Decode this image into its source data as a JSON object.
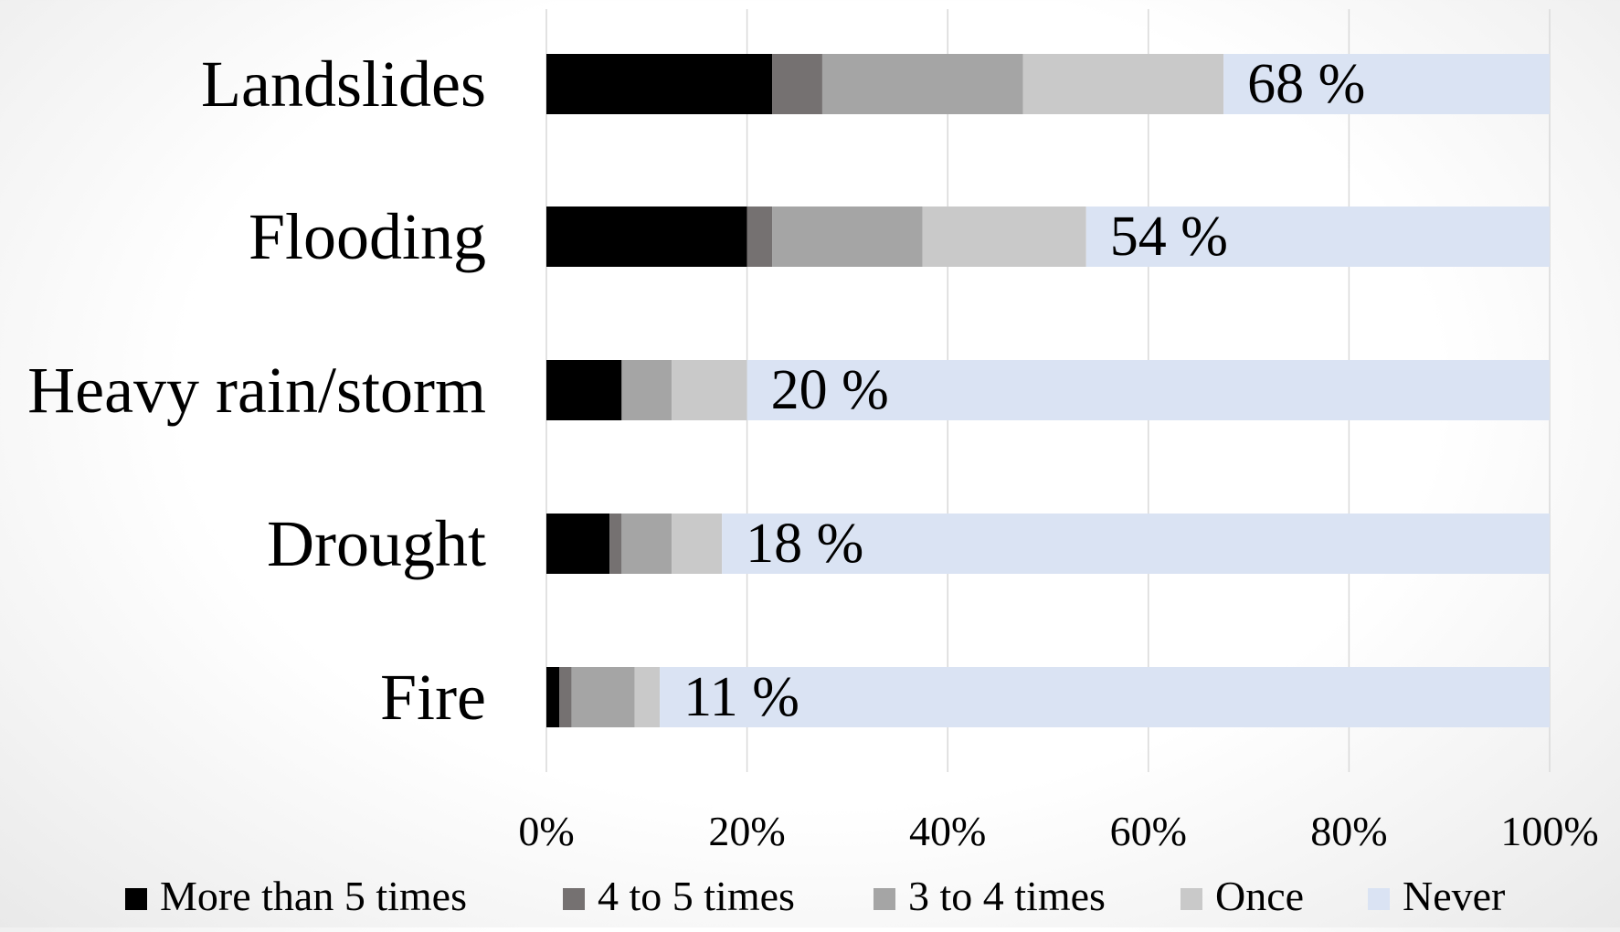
{
  "chart_data": {
    "type": "bar",
    "orientation": "horizontal",
    "stacked": true,
    "percent_stacked": true,
    "categories": [
      "Landslides",
      "Flooding",
      "Heavy rain/storm",
      "Drought",
      "Fire"
    ],
    "series": [
      {
        "name": "More than 5 times",
        "color": "#000000",
        "values": [
          22.5,
          20,
          7.5,
          6.3,
          1.3
        ]
      },
      {
        "name": "4 to 5 times",
        "color": "#757171",
        "values": [
          5,
          2.5,
          0,
          1.2,
          1.2
        ]
      },
      {
        "name": "3 to 4 times",
        "color": "#a5a5a5",
        "values": [
          20,
          15,
          5,
          5,
          6.3
        ]
      },
      {
        "name": "Once",
        "color": "#c9c9c9",
        "values": [
          20,
          16.3,
          7.5,
          5,
          2.5
        ]
      },
      {
        "name": "Never",
        "color": "#dae3f3",
        "values": [
          32.5,
          46.2,
          80,
          82.5,
          88.7
        ]
      }
    ],
    "data_labels": [
      "68 %",
      "54 %",
      "20 %",
      "18 %",
      "11 %"
    ],
    "xlim": [
      0,
      100
    ],
    "x_ticks": [
      "0%",
      "20%",
      "40%",
      "60%",
      "80%",
      "100%"
    ],
    "grid": true,
    "legend": "bottom"
  }
}
